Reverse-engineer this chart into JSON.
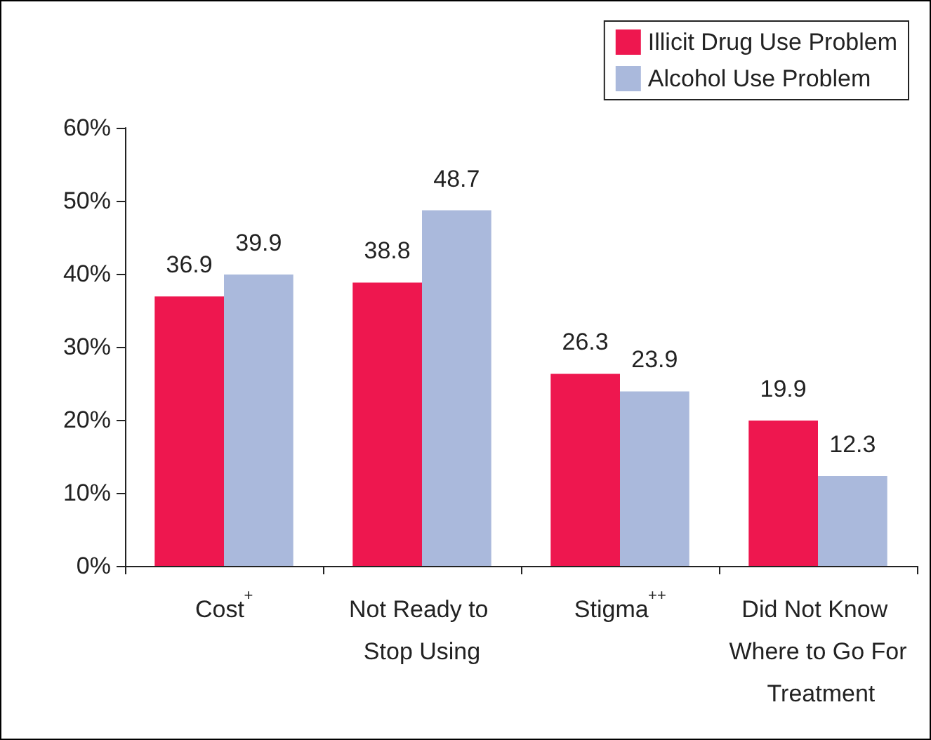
{
  "chart_data": {
    "type": "bar",
    "categories": [
      "Cost$^{+}$",
      "Not Ready to Stop Using",
      "Stigma$^{++}$",
      "Did Not Know Where to Go For Treatment"
    ],
    "series": [
      {
        "name": "Illicit Drug Use Problem",
        "color": "#ee174f",
        "values": [
          36.9,
          38.8,
          26.3,
          19.9
        ]
      },
      {
        "name": "Alcohol Use Problem",
        "color": "#aab9dc",
        "values": [
          39.9,
          48.7,
          23.9,
          12.3
        ]
      }
    ],
    "ylim": [
      0,
      60
    ],
    "yticks": [
      {
        "value": 0,
        "label": "0%"
      },
      {
        "value": 10,
        "label": "10%"
      },
      {
        "value": 20,
        "label": "20%"
      },
      {
        "value": 30,
        "label": "30%"
      },
      {
        "value": 40,
        "label": "40%"
      },
      {
        "value": 50,
        "label": "50%"
      },
      {
        "value": 60,
        "label": "60%"
      }
    ],
    "data_labels": true,
    "grid": false,
    "legend": "top right"
  }
}
